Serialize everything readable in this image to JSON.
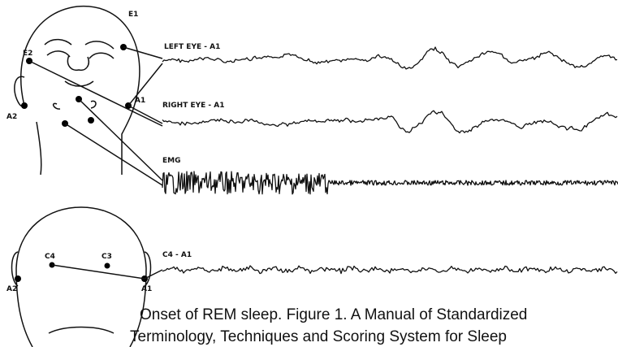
{
  "face": {
    "electrodes": [
      "E1",
      "E2",
      "A1",
      "A2"
    ]
  },
  "traces": [
    "LEFT EYE - A1",
    "RIGHT EYE - A1",
    "EMG",
    "C4 - A1"
  ],
  "head_back": {
    "electrodes": [
      "C4",
      "C3",
      "A2",
      "A1"
    ]
  },
  "caption": [
    "Onset of REM sleep. Figure 1. A Manual of Standardized",
    "Terminology, Techniques and Scoring System for Sleep"
  ]
}
